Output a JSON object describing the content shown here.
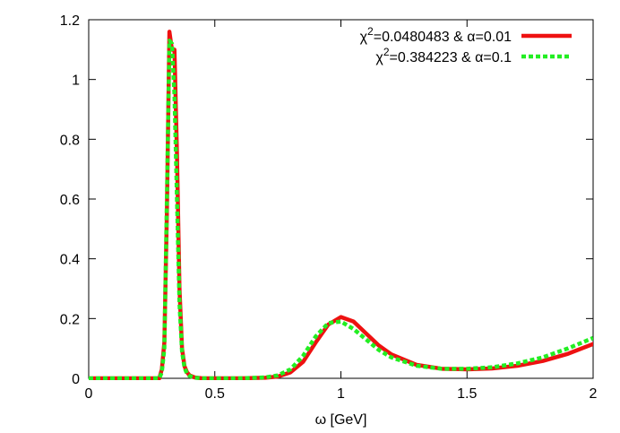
{
  "chart_data": {
    "type": "line",
    "title": "",
    "xlabel": "ω [GeV]",
    "ylabel": "",
    "xlim": [
      0,
      2
    ],
    "ylim": [
      0,
      1.2
    ],
    "xticks": [
      0,
      0.5,
      1,
      1.5,
      2
    ],
    "xtick_labels": [
      "0",
      "0.5",
      "1",
      "1.5",
      "2"
    ],
    "yticks": [
      0,
      0.2,
      0.4,
      0.6,
      0.8,
      1,
      1.2
    ],
    "ytick_labels": [
      "0",
      "0.2",
      "0.4",
      "0.6",
      "0.8",
      "1",
      "1.2"
    ],
    "grid": false,
    "legend_position": "top-right",
    "series": [
      {
        "name": "χ²=0.0480483 & α=0.01",
        "color": "#ee1111",
        "style": "solid",
        "x": [
          0,
          0.1,
          0.2,
          0.28,
          0.29,
          0.3,
          0.31,
          0.32,
          0.33,
          0.34,
          0.35,
          0.36,
          0.37,
          0.38,
          0.39,
          0.4,
          0.42,
          0.45,
          0.5,
          0.6,
          0.7,
          0.75,
          0.8,
          0.85,
          0.9,
          0.95,
          1.0,
          1.05,
          1.1,
          1.15,
          1.2,
          1.3,
          1.4,
          1.5,
          1.6,
          1.7,
          1.8,
          1.9,
          2.0
        ],
        "y": [
          0,
          0,
          0,
          0,
          0.03,
          0.12,
          0.55,
          1.16,
          1.1,
          1.1,
          0.75,
          0.3,
          0.1,
          0.04,
          0.02,
          0.01,
          0.003,
          0,
          0,
          0,
          0.002,
          0.006,
          0.02,
          0.055,
          0.12,
          0.18,
          0.205,
          0.19,
          0.15,
          0.11,
          0.08,
          0.045,
          0.032,
          0.03,
          0.033,
          0.042,
          0.058,
          0.082,
          0.115
        ]
      },
      {
        "name": "χ²=0.384223 & α=0.1",
        "color": "#22ee22",
        "style": "dashed",
        "x": [
          0,
          0.1,
          0.2,
          0.28,
          0.29,
          0.3,
          0.31,
          0.32,
          0.33,
          0.34,
          0.35,
          0.36,
          0.37,
          0.38,
          0.39,
          0.4,
          0.42,
          0.45,
          0.5,
          0.6,
          0.7,
          0.75,
          0.8,
          0.85,
          0.9,
          0.95,
          1.0,
          1.05,
          1.1,
          1.15,
          1.2,
          1.3,
          1.4,
          1.5,
          1.6,
          1.7,
          1.8,
          1.9,
          2.0
        ],
        "y": [
          0,
          0,
          0,
          0,
          0.02,
          0.1,
          0.6,
          1.13,
          1.12,
          0.95,
          0.6,
          0.25,
          0.09,
          0.035,
          0.015,
          0.008,
          0.002,
          0,
          0,
          0,
          0.003,
          0.01,
          0.03,
          0.075,
          0.14,
          0.185,
          0.19,
          0.165,
          0.13,
          0.095,
          0.07,
          0.042,
          0.032,
          0.032,
          0.037,
          0.05,
          0.07,
          0.1,
          0.135
        ]
      }
    ],
    "legend": [
      {
        "prefix": "χ",
        "sup": "2",
        "rest": "=0.0480483 & α=0.01"
      },
      {
        "prefix": "χ",
        "sup": "2",
        "rest": "=0.384223 & α=0.1"
      }
    ]
  }
}
